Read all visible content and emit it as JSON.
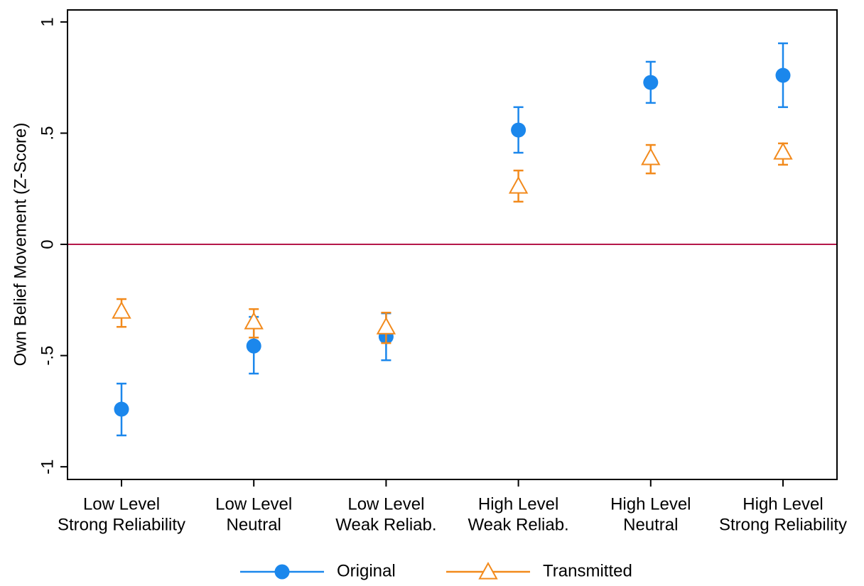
{
  "chart_data": {
    "type": "errorbar",
    "y_label": "Own Belief Movement (Z-Score)",
    "categories": [
      [
        "Low Level",
        "Strong Reliability"
      ],
      [
        "Low Level",
        "Neutral"
      ],
      [
        "Low Level",
        "Weak Reliab."
      ],
      [
        "High Level",
        "Weak Reliab."
      ],
      [
        "High Level",
        "Neutral"
      ],
      [
        "High Level",
        "Strong Reliability"
      ]
    ],
    "series": [
      {
        "name": "Original",
        "color": "#1b87ec",
        "marker": "circle",
        "values": [
          -0.741,
          -0.457,
          -0.415,
          0.514,
          0.728,
          0.76
        ],
        "lower": [
          -0.859,
          -0.581,
          -0.521,
          0.412,
          0.636,
          0.617
        ],
        "upper": [
          -0.626,
          -0.326,
          -0.31,
          0.617,
          0.821,
          0.904
        ]
      },
      {
        "name": "Transmitted",
        "color": "#f28a1c",
        "marker": "triangle",
        "values": [
          -0.3,
          -0.348,
          -0.371,
          0.262,
          0.39,
          0.415
        ],
        "lower": [
          -0.371,
          -0.419,
          -0.444,
          0.192,
          0.319,
          0.358
        ],
        "upper": [
          -0.246,
          -0.291,
          -0.307,
          0.332,
          0.447,
          0.454
        ]
      }
    ],
    "ylim": [
      -1.057,
      1.054
    ],
    "yticks": [
      -1,
      {
        "value": -0.5,
        "label": "-.5"
      },
      0,
      {
        "value": 0.5,
        "label": ".5"
      },
      1
    ],
    "reference_line": {
      "value": 0,
      "color": "#b5174a"
    },
    "legend": "bottom"
  }
}
